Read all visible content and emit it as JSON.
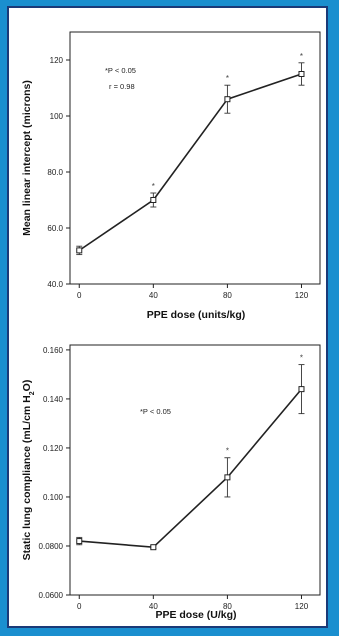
{
  "background_color": "#1a8fcf",
  "frame_border_color": "#1b3a78",
  "chart_data": [
    {
      "type": "line",
      "title": "",
      "xlabel": "PPE dose (units/kg)",
      "ylabel": "Mean linear intercept (microns)",
      "x": [
        0,
        40,
        80,
        120
      ],
      "x_ticks": [
        "0",
        "40",
        "80",
        "120"
      ],
      "xlim": [
        -5,
        130
      ],
      "ylim": [
        40.0,
        130
      ],
      "y_ticks": [
        "40.0",
        "60.0",
        "80.0",
        "100",
        "120"
      ],
      "y_tick_values": [
        40,
        60,
        80,
        100,
        120
      ],
      "series": [
        {
          "values": [
            52,
            70,
            106,
            115
          ],
          "error": [
            1.5,
            2.5,
            5,
            4
          ],
          "significant": [
            "",
            "*",
            "*",
            "*"
          ]
        }
      ],
      "annotations": [
        "*P < 0.05",
        "r = 0.98"
      ],
      "grid": false
    },
    {
      "type": "line",
      "title": "",
      "xlabel": "PPE dose (U/kg)",
      "ylabel": "Static lung compliance (mL/cm H2O)",
      "x": [
        0,
        40,
        80,
        120
      ],
      "x_ticks": [
        "0",
        "40",
        "80",
        "120"
      ],
      "xlim": [
        -5,
        130
      ],
      "ylim": [
        0.06,
        0.162
      ],
      "y_ticks": [
        "0.0600",
        "0.0800",
        "0.100",
        "0.120",
        "0.140",
        "0.160"
      ],
      "y_tick_values": [
        0.06,
        0.08,
        0.1,
        0.12,
        0.14,
        0.16
      ],
      "series": [
        {
          "values": [
            0.082,
            0.0795,
            0.108,
            0.144
          ],
          "error": [
            0.0015,
            0.0006,
            0.008,
            0.01
          ],
          "significant": [
            "",
            "",
            "*",
            "*"
          ]
        }
      ],
      "annotations": [
        "*P < 0.05"
      ],
      "grid": false
    }
  ]
}
